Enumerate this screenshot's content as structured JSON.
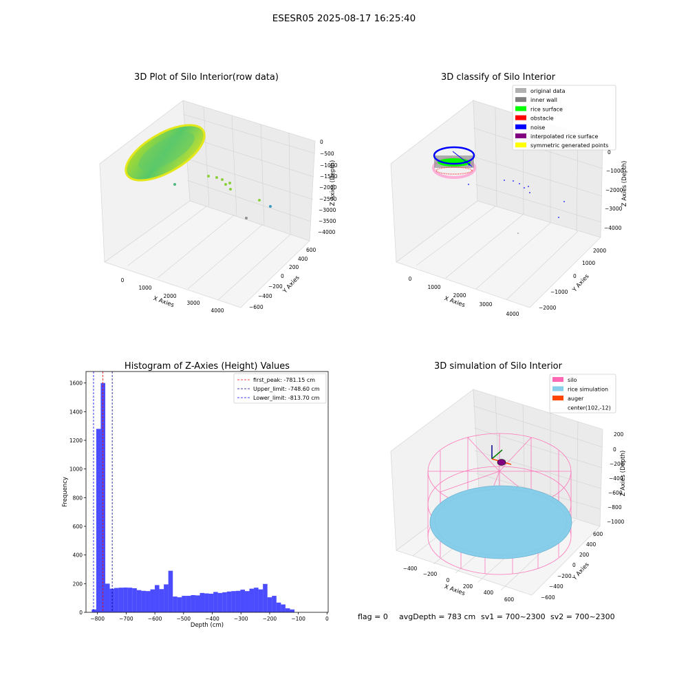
{
  "figure": {
    "suptitle": "ESESR05 2025-08-17 16:25:40",
    "footer": {
      "flag": "flag = 0",
      "avg": "avgDepth = 783 cm",
      "sv1": "sv1 = 700~2300",
      "sv2": "sv2 = 700~2300"
    }
  },
  "panels": {
    "raw": {
      "title": "3D Plot of Silo Interior(row data)",
      "xlabel": "X Axies",
      "ylabel": "Y Axies",
      "zlabel": "Z Axies (Depth)",
      "xticks": [
        "0",
        "1000",
        "2000",
        "3000",
        "4000"
      ],
      "yticks": [
        "600",
        "400",
        "200",
        "0",
        "−200",
        "−400",
        "−600"
      ],
      "zticks": [
        "0",
        "−500",
        "−1000",
        "−1500",
        "−2000",
        "−2500",
        "−3000",
        "−3500",
        "−4000"
      ]
    },
    "classify": {
      "title": "3D classify of Silo Interior",
      "xlabel": "X Axies",
      "ylabel": "Y Axies",
      "zlabel": "Z Axies (Depth)",
      "xticks": [
        "0",
        "1000",
        "2000",
        "3000",
        "4000"
      ],
      "yticks": [
        "2000",
        "1000",
        "0",
        "−1000",
        "−2000"
      ],
      "zticks": [
        "0",
        "−1000",
        "−2000",
        "−3000",
        "−4000"
      ],
      "legend": [
        {
          "label": "original data",
          "color": "#b0b0b0"
        },
        {
          "label": "inner wall",
          "color": "#808080"
        },
        {
          "label": "rice surface",
          "color": "#00ff00"
        },
        {
          "label": "obstacle",
          "color": "#ff0000"
        },
        {
          "label": "noise",
          "color": "#0000ff"
        },
        {
          "label": "interpolated rice surface",
          "color": "#800080"
        },
        {
          "label": "symmetric generated points",
          "color": "#ffff00"
        }
      ]
    },
    "simulation": {
      "title": "3D simulation of Silo Interior",
      "xlabel": "X Axies",
      "ylabel": "Y Axies",
      "zlabel": "Z Axies (Depth)",
      "xticks": [
        "−400",
        "−200",
        "0",
        "200",
        "400",
        "600"
      ],
      "yticks": [
        "600",
        "400",
        "200",
        "0",
        "−200",
        "−400",
        "−600"
      ],
      "zticks": [
        "200",
        "0",
        "−200",
        "−400",
        "−600",
        "−800",
        "−1000"
      ],
      "legend": [
        {
          "label": "silo",
          "color": "#ff69b4"
        },
        {
          "label": "rice simulation",
          "color": "#87ceeb"
        },
        {
          "label": "auger",
          "color": "#ff4500"
        },
        {
          "label": "center(102,-12)",
          "color": "none"
        }
      ]
    }
  },
  "chart_data": {
    "type": "bar",
    "title": "Histogram of Z-Axies (Height) Values",
    "xlabel": "Depth (cm)",
    "ylabel": "Frequency",
    "xlim": [
      -840,
      4
    ],
    "ylim": [
      0,
      1680
    ],
    "xticks": [
      -800,
      -700,
      -600,
      -500,
      -400,
      -300,
      -200,
      -100,
      0
    ],
    "yticks": [
      0,
      200,
      400,
      600,
      800,
      1000,
      1200,
      1400,
      1600
    ],
    "bar_color": "#0000ff",
    "bin_start": -820,
    "bin_width": 15.7,
    "values": [
      20,
      1280,
      1600,
      200,
      165,
      170,
      172,
      173,
      172,
      168,
      155,
      150,
      148,
      160,
      190,
      162,
      195,
      290,
      110,
      105,
      115,
      115,
      120,
      118,
      135,
      132,
      130,
      142,
      135,
      140,
      145,
      148,
      150,
      158,
      148,
      165,
      172,
      160,
      198,
      105,
      115,
      68,
      55,
      28,
      20
    ],
    "lines": [
      {
        "label": "first_peak: -781.15 cm",
        "x": -781.15,
        "color": "#ff0000"
      },
      {
        "label": "Upper_limit: -748.60 cm",
        "x": -748.6,
        "color": "#00008b"
      },
      {
        "label": "Lower_limit: -813.70 cm",
        "x": -813.7,
        "color": "#0000ff"
      }
    ]
  }
}
